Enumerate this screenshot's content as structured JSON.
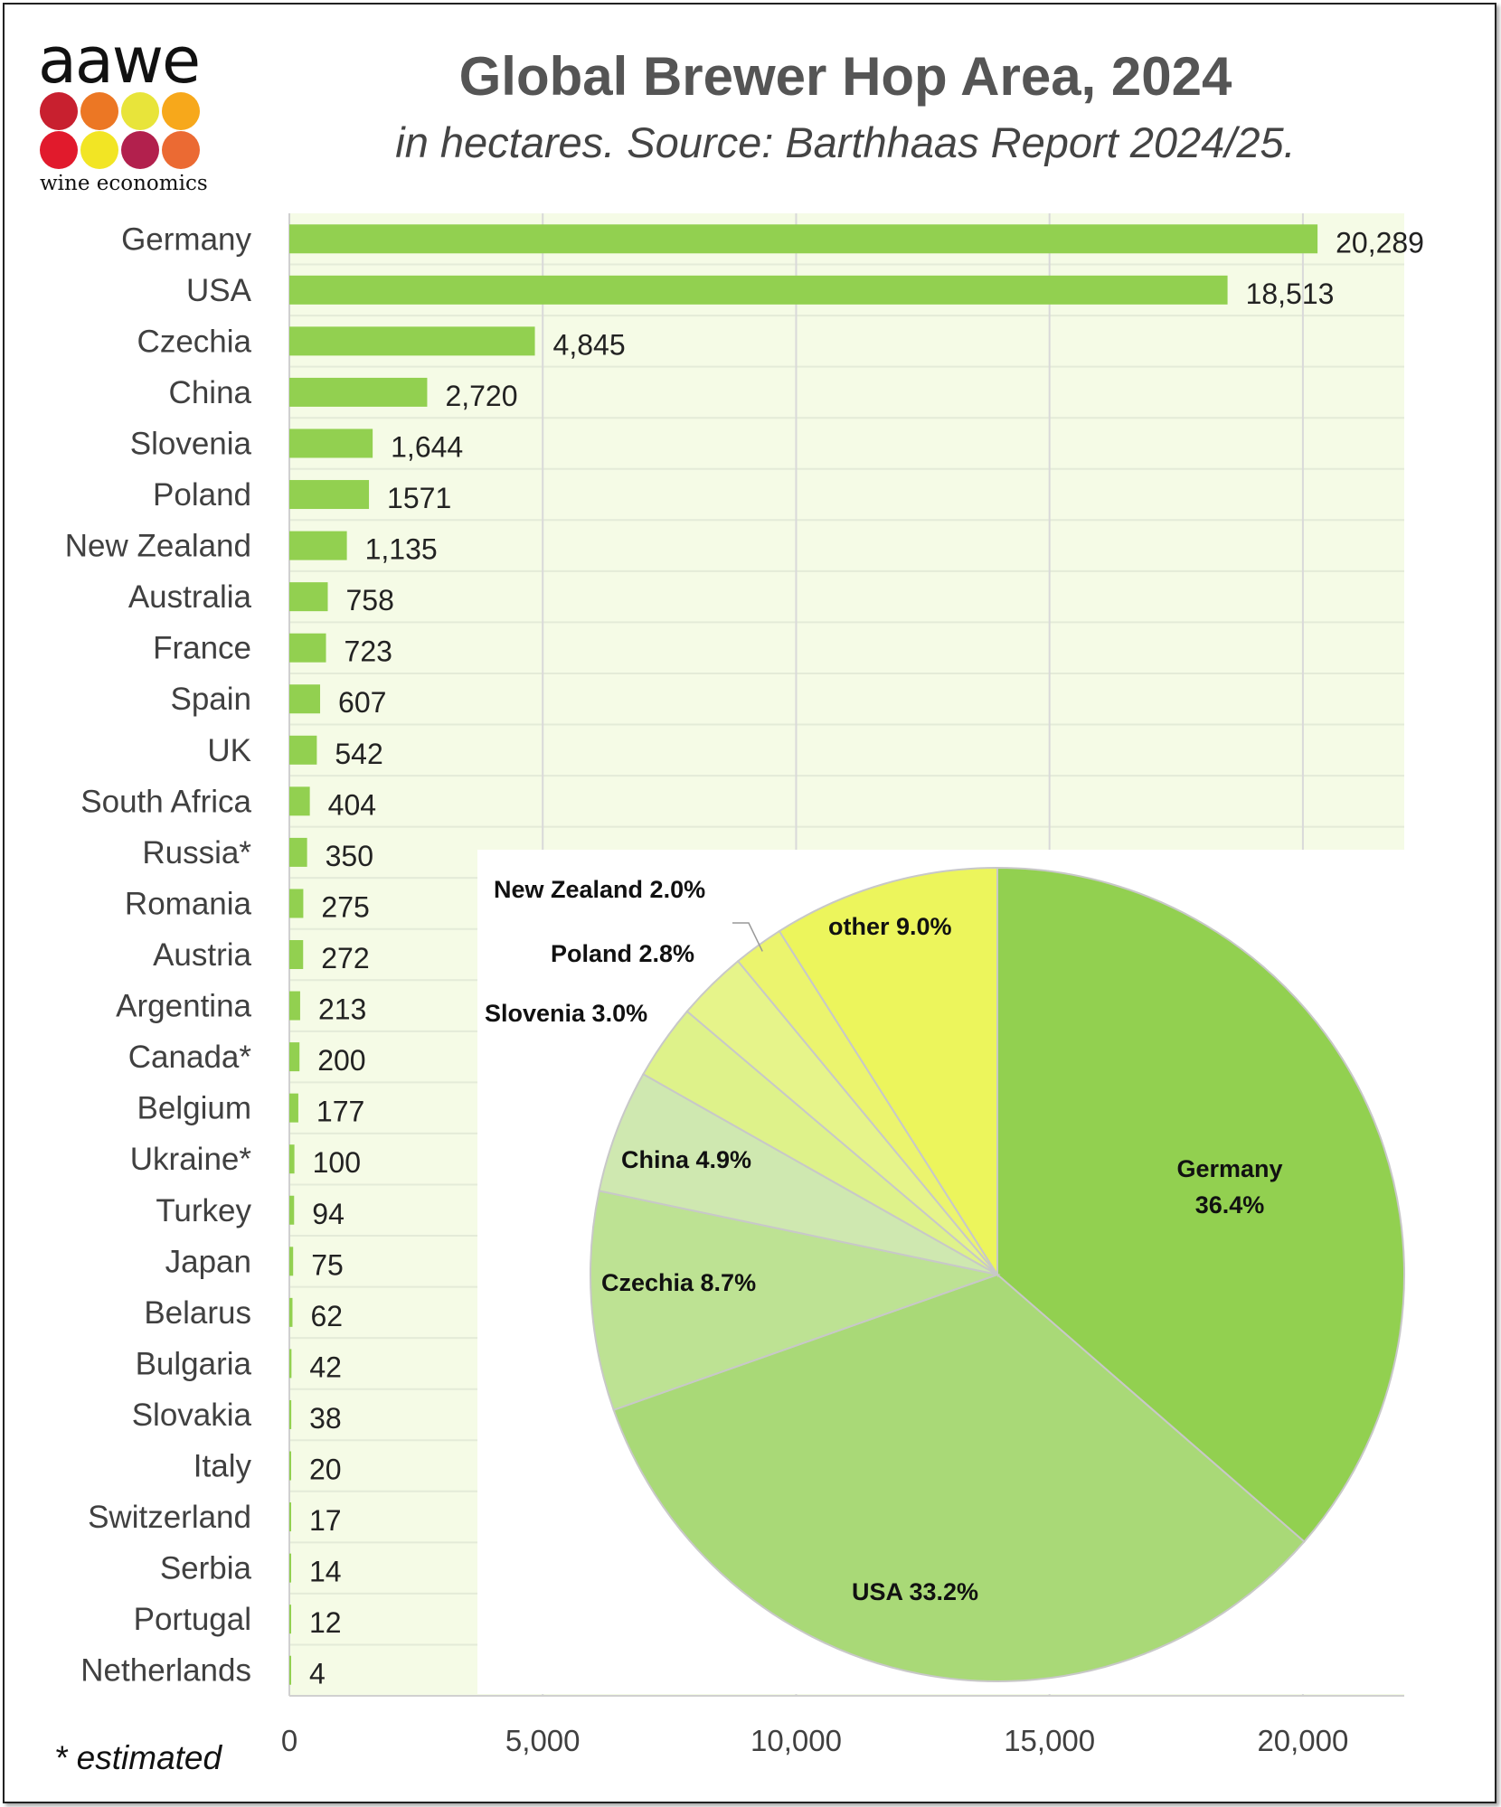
{
  "logo": {
    "wordmark": "aawe",
    "subtitle": "wine economics",
    "dot_colors": [
      "#c8202f",
      "#ec7724",
      "#e8e43a",
      "#f7a81b",
      "#e11a2c",
      "#f2e524",
      "#b2204d",
      "#eb6a33"
    ]
  },
  "colors": {
    "plot_background": "#f5fbe6",
    "bar": "#92d050",
    "gridline": "#d9d9d9",
    "text": "#404040"
  },
  "footnote": "* estimated",
  "chart_data": [
    {
      "type": "bar",
      "orientation": "horizontal",
      "title": "Global Brewer Hop Area, 2024",
      "subtitle": "in hectares. Source: Barthhaas Report 2024/25.",
      "categories": [
        "Germany",
        "USA",
        "Czechia",
        "China",
        "Slovenia",
        "Poland",
        "New Zealand",
        "Australia",
        "France",
        "Spain",
        "UK",
        "South Africa",
        "Russia*",
        "Romania",
        "Austria",
        "Argentina",
        "Canada*",
        "Belgium",
        "Ukraine*",
        "Turkey",
        "Japan",
        "Belarus",
        "Bulgaria",
        "Slovakia",
        "Italy",
        "Switzerland",
        "Serbia",
        "Portugal",
        "Netherlands"
      ],
      "values": [
        20289,
        18513,
        4845,
        2720,
        1644,
        1571,
        1135,
        758,
        723,
        607,
        542,
        404,
        350,
        275,
        272,
        213,
        200,
        177,
        100,
        94,
        75,
        62,
        42,
        38,
        20,
        17,
        14,
        12,
        4
      ],
      "data_labels": [
        "20,289",
        "18,513",
        "4,845",
        "2,720",
        "1,644",
        "1571",
        "1,135",
        "758",
        "723",
        "607",
        "542",
        "404",
        "350",
        "275",
        "272",
        "213",
        "200",
        "177",
        "100",
        "94",
        "75",
        "62",
        "42",
        "38",
        "20",
        "17",
        "14",
        "12",
        "4"
      ],
      "x_ticks": [
        0,
        5000,
        10000,
        15000,
        20000
      ],
      "x_tick_labels": [
        "0",
        "5,000",
        "10,000",
        "15,000",
        "20,000"
      ],
      "xlim": [
        0,
        22000
      ],
      "grid": "vertical"
    },
    {
      "type": "pie",
      "slices": [
        {
          "label": "Germany",
          "value": 36.4,
          "display": "Germany\n36.4%",
          "color": "#92d050"
        },
        {
          "label": "USA",
          "value": 33.2,
          "display": "USA 33.2%",
          "color": "#a9d977"
        },
        {
          "label": "Czechia",
          "value": 8.7,
          "display": "Czechia 8.7%",
          "color": "#bde293"
        },
        {
          "label": "China",
          "value": 4.9,
          "display": "China 4.9%",
          "color": "#cfe8b0"
        },
        {
          "label": "Slovenia",
          "value": 3.0,
          "display": "Slovenia 3.0%",
          "color": "#def28a"
        },
        {
          "label": "Poland",
          "value": 2.8,
          "display": "Poland 2.8%",
          "color": "#e6f48a"
        },
        {
          "label": "New Zealand",
          "value": 2.0,
          "display": "New Zealand 2.0%",
          "color": "#ebf46e"
        },
        {
          "label": "other",
          "value": 9.0,
          "display": "other 9.0%",
          "color": "#ecf55c"
        }
      ]
    }
  ]
}
